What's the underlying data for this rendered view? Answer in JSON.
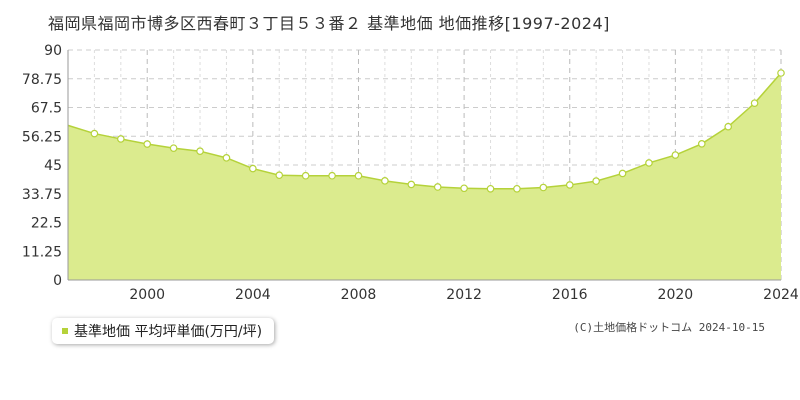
{
  "title": "福岡県福岡市博多区西春町３丁目５３番２ 基準地価 地価推移[1997-2024]",
  "copyright": "(C)土地価格ドットコム 2024-10-15",
  "legend": {
    "label": "基準地価 平均坪単価(万円/坪)"
  },
  "colors": {
    "line": "#b5d23a",
    "fill": "#dbeb8e",
    "marker_fill": "#ffffff",
    "grid": "#cccccc",
    "legend_swatch": "#b5d23a"
  },
  "chart_data": {
    "type": "area",
    "x": [
      1997,
      1998,
      1999,
      2000,
      2001,
      2002,
      2003,
      2004,
      2005,
      2006,
      2007,
      2008,
      2009,
      2010,
      2011,
      2012,
      2013,
      2014,
      2015,
      2016,
      2017,
      2018,
      2019,
      2020,
      2021,
      2022,
      2023,
      2024
    ],
    "series": [
      {
        "name": "基準地価 平均坪単価(万円/坪)",
        "values": [
          60.5,
          57.3,
          55.2,
          53.2,
          51.6,
          50.4,
          47.8,
          43.6,
          41.0,
          40.8,
          40.8,
          40.8,
          38.8,
          37.4,
          36.4,
          35.9,
          35.7,
          35.7,
          36.2,
          37.2,
          38.7,
          41.7,
          45.8,
          48.9,
          53.3,
          60.0,
          69.2,
          81.0
        ]
      }
    ],
    "xlim": [
      1997,
      2024
    ],
    "ylim": [
      0,
      90
    ],
    "y_ticks": [
      "0",
      "11.25",
      "22.5",
      "33.75",
      "45",
      "56.25",
      "67.5",
      "78.75",
      "90"
    ],
    "x_ticks": [
      "2000",
      "2004",
      "2008",
      "2012",
      "2016",
      "2020",
      "2024"
    ],
    "x_tick_values": [
      2000,
      2004,
      2008,
      2012,
      2016,
      2020,
      2024
    ],
    "grid": true
  }
}
